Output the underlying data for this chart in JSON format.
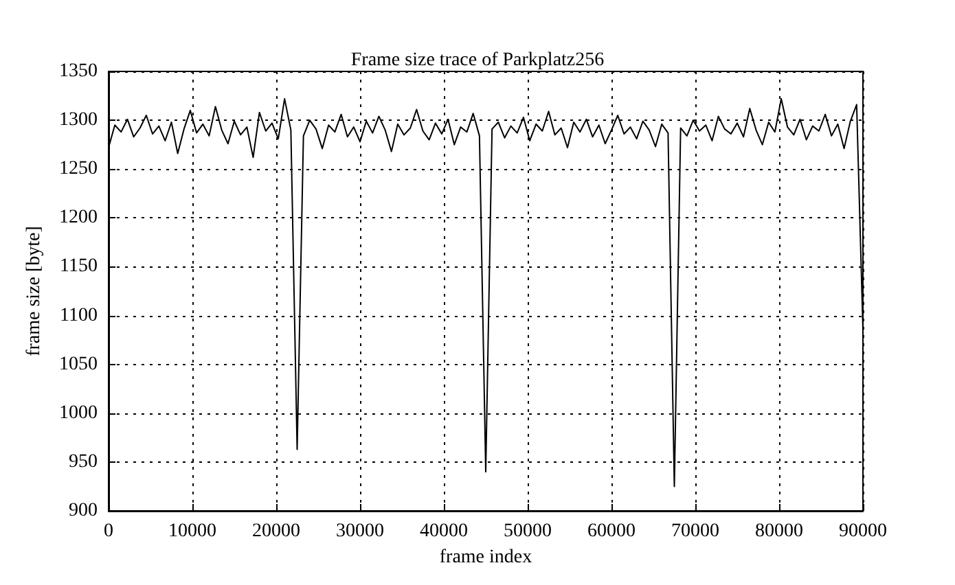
{
  "chart_data": {
    "type": "line",
    "title": "Frame size trace of Parkplatz256",
    "xlabel": "frame index",
    "ylabel": "frame size [byte]",
    "x": [
      0,
      750,
      1500,
      2250,
      3000,
      3750,
      4500,
      5250,
      6000,
      6750,
      7500,
      8250,
      9000,
      9750,
      10500,
      11250,
      12000,
      12750,
      13500,
      14250,
      15000,
      15750,
      16500,
      17250,
      18000,
      18750,
      19500,
      20250,
      21000,
      21750,
      22500,
      23250,
      24000,
      24750,
      25500,
      26250,
      27000,
      27750,
      28500,
      29250,
      30000,
      30750,
      31500,
      32250,
      33000,
      33750,
      34500,
      35250,
      36000,
      36750,
      37500,
      38250,
      39000,
      39750,
      40500,
      41250,
      42000,
      42750,
      43500,
      44250,
      45000,
      45750,
      46500,
      47250,
      48000,
      48750,
      49500,
      50250,
      51000,
      51750,
      52500,
      53250,
      54000,
      54750,
      55500,
      56250,
      57000,
      57750,
      58500,
      59250,
      60000,
      60750,
      61500,
      62250,
      63000,
      63750,
      64500,
      65250,
      66000,
      66750,
      67500,
      68250,
      69000,
      69750,
      70500,
      71250,
      72000,
      72750,
      73500,
      74250,
      75000,
      75750,
      76500,
      77250,
      78000,
      78750,
      79500,
      80250,
      81000,
      81750,
      82500,
      83250,
      84000,
      84750,
      85500,
      86250,
      87000,
      87750,
      88500,
      89250,
      90000
    ],
    "series": [
      {
        "color": "#000000",
        "values": [
          1272,
          1295,
          1288,
          1301,
          1283,
          1292,
          1305,
          1286,
          1294,
          1279,
          1298,
          1266,
          1291,
          1310,
          1287,
          1296,
          1284,
          1314,
          1290,
          1276,
          1299,
          1285,
          1293,
          1262,
          1308,
          1289,
          1297,
          1281,
          1322,
          1290,
          963,
          1284,
          1300,
          1291,
          1271,
          1295,
          1288,
          1306,
          1283,
          1293,
          1278,
          1299,
          1287,
          1304,
          1290,
          1268,
          1296,
          1285,
          1292,
          1311,
          1289,
          1280,
          1297,
          1286,
          1301,
          1275,
          1293,
          1288,
          1307,
          1284,
          940,
          1291,
          1298,
          1282,
          1294,
          1287,
          1303,
          1279,
          1296,
          1289,
          1309,
          1285,
          1292,
          1272,
          1298,
          1288,
          1301,
          1283,
          1295,
          1276,
          1290,
          1305,
          1286,
          1293,
          1281,
          1299,
          1290,
          1273,
          1296,
          1287,
          925,
          1292,
          1284,
          1300,
          1289,
          1295,
          1279,
          1304,
          1291,
          1286,
          1297,
          1283,
          1312,
          1290,
          1275,
          1298,
          1288,
          1322,
          1293,
          1285,
          1301,
          1280,
          1294,
          1289,
          1306,
          1284,
          1296,
          1271,
          1299,
          1316,
          1086
        ]
      }
    ],
    "xlim": [
      0,
      90000
    ],
    "xticks": [
      0,
      10000,
      20000,
      30000,
      40000,
      50000,
      60000,
      70000,
      80000,
      90000
    ],
    "ylim": [
      900,
      1350
    ],
    "yticks": [
      900,
      950,
      1000,
      1050,
      1100,
      1150,
      1200,
      1250,
      1300,
      1350
    ],
    "grid": true,
    "marker": "none",
    "line_style": "solid"
  }
}
